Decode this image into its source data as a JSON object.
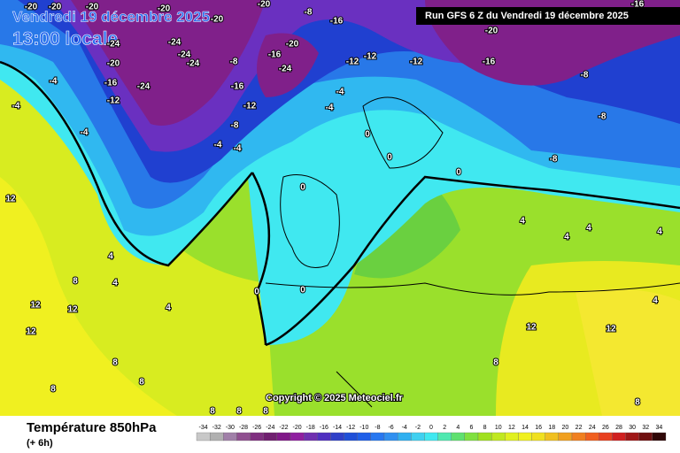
{
  "header": {
    "title": "Vendredi 19 décembre 2025",
    "time": "13:00 locale",
    "run": "Run GFS 6 Z du Vendredi 19 décembre 2025",
    "copyright": "Copyright © 2025 Meteociel.fr"
  },
  "legend": {
    "title": "Température 850hPa",
    "lead": "(+ 6h)",
    "scale": [
      -34,
      -32,
      -30,
      -28,
      -26,
      -24,
      -22,
      -20,
      -18,
      -16,
      -14,
      -12,
      -10,
      -8,
      -6,
      -4,
      -2,
      0,
      2,
      4,
      6,
      8,
      10,
      12,
      14,
      16,
      18,
      20,
      22,
      24,
      26,
      28,
      30,
      32,
      34
    ]
  },
  "map": {
    "contour_labels": [
      -20,
      -20,
      -20,
      -20,
      -20,
      -20,
      -24,
      -24,
      -24,
      -24,
      -24,
      -20,
      -16,
      -12,
      -8,
      -8,
      -16,
      -20,
      -16,
      -24,
      -16,
      -12,
      -8,
      -12,
      -12,
      -12,
      -16,
      -20,
      -8,
      -8,
      -8,
      -16,
      -4,
      -4,
      -4,
      -4,
      -4,
      -4,
      -4,
      0,
      0,
      0,
      0,
      0,
      0,
      4,
      4,
      4,
      4,
      4,
      4,
      4,
      8,
      12,
      12,
      12,
      12,
      8,
      8,
      8,
      12,
      12,
      4,
      8,
      8,
      8,
      8,
      8
    ]
  }
}
